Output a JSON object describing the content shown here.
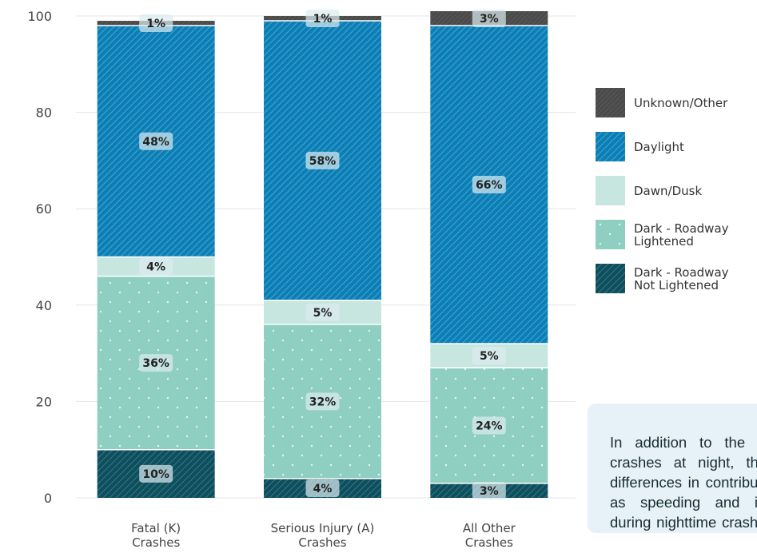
{
  "chart_data": {
    "type": "bar",
    "stacked": true,
    "categories": [
      "Fatal (K)\nCrashes",
      "Serious Injury (A)\nCrashes",
      "All Other\nCrashes"
    ],
    "ylim": [
      0,
      100
    ],
    "yticks": [
      0,
      20,
      40,
      60,
      80,
      100
    ],
    "grid": true,
    "legend_position": "right",
    "series": [
      {
        "name": "Dark - Roadway\nNot Lightened",
        "values": [
          10,
          4,
          3
        ],
        "labels": [
          "10%",
          "4%",
          "3%"
        ],
        "color": "#0f4e5c"
      },
      {
        "name": "Dark - Roadway\nLightened",
        "values": [
          36,
          32,
          24
        ],
        "labels": [
          "36%",
          "32%",
          "24%"
        ],
        "color": "#8fcfc1"
      },
      {
        "name": "Dawn/Dusk",
        "values": [
          4,
          5,
          5
        ],
        "labels": [
          "4%",
          "5%",
          "5%"
        ],
        "color": "#c8e6e0"
      },
      {
        "name": "Daylight",
        "values": [
          48,
          58,
          66
        ],
        "labels": [
          "48%",
          "58%",
          "66%"
        ],
        "color": "#0b7fb5"
      },
      {
        "name": "Unknown/Other",
        "values": [
          1,
          1,
          3
        ],
        "labels": [
          "1%",
          "1%",
          "3%"
        ],
        "color": "#4a4a4a"
      }
    ]
  },
  "legend": {
    "items": [
      {
        "label": "Unknown/Other",
        "key": "unknown"
      },
      {
        "label": "Daylight",
        "key": "daylight"
      },
      {
        "label": "Dawn/Dusk",
        "key": "dawn"
      },
      {
        "label": "Dark - Roadway\nLightened",
        "key": "lit"
      },
      {
        "label": "Dark - Roadway\nNot Lightened",
        "key": "notlit"
      }
    ]
  },
  "note": {
    "text": "In addition to the higher share of crashes at night, there are notable differences in contributing factors, such as speeding and impaired driving, during nighttime crashes. These factors are discussed below."
  }
}
